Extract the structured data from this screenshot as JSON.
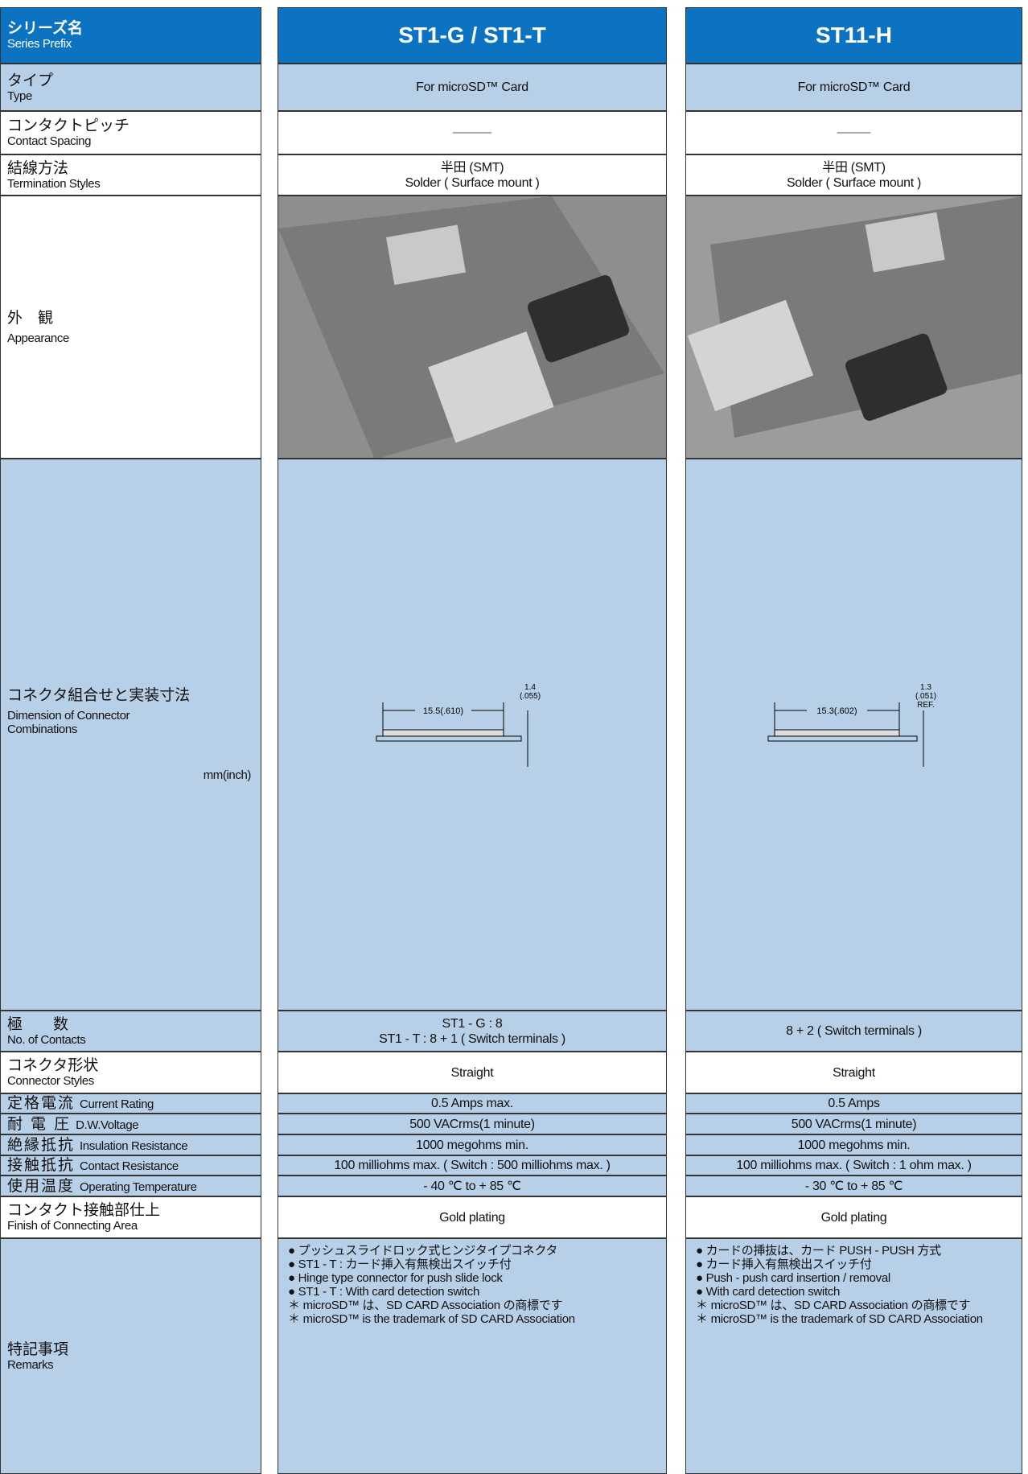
{
  "header": {
    "label_ja": "シリーズ名",
    "label_en": "Series Prefix",
    "series": [
      "ST1-G / ST1-T",
      "ST11-H"
    ]
  },
  "rows": [
    {
      "label_ja": "タイプ",
      "label_en": "Type",
      "cells": [
        [
          "For microSD™ Card"
        ],
        [
          "For microSD™ Card"
        ]
      ]
    },
    {
      "label_ja": "コンタクトピッチ",
      "label_en": "Contact Spacing"
    },
    {
      "label_ja": "結線方法",
      "label_en": "Termination Styles",
      "cells": [
        [
          "半田 (SMT)",
          "Solder ( Surface mount )"
        ],
        [
          "半田 (SMT)",
          "Solder ( Surface mount )"
        ]
      ]
    },
    {
      "label_ja": "外　観",
      "label_en": "Appearance"
    },
    {
      "label_ja": "コネクタ組合せと実装寸法",
      "label_en": "Dimension of Connector Combinations",
      "unit": "mm(inch)",
      "drawings": [
        {
          "length": "15.5(.610)",
          "height": [
            "1.4",
            "(.055)"
          ]
        },
        {
          "length": "15.3(.602)",
          "height": [
            "1.3",
            "(.051)",
            "REF."
          ]
        }
      ]
    },
    {
      "label_ja": "極　　数",
      "label_en": "No. of Contacts",
      "cells": [
        [
          "ST1 - G : 8",
          "ST1 - T : 8 + 1 ( Switch terminals )"
        ],
        [
          "8 + 2 ( Switch terminals )"
        ]
      ]
    },
    {
      "label_ja": "コネクタ形状",
      "label_en": "Connector Styles",
      "cells": [
        [
          "Straight"
        ],
        [
          "Straight"
        ]
      ]
    },
    {
      "label_ja": "定格電流",
      "label_en": "Current Rating",
      "cells": [
        [
          "0.5 Amps max."
        ],
        [
          "0.5 Amps"
        ]
      ]
    },
    {
      "label_ja": "耐 電 圧",
      "label_en": "D.W.Voltage",
      "cells": [
        [
          "500 VACrms(1 minute)"
        ],
        [
          "500 VACrms(1 minute)"
        ]
      ]
    },
    {
      "label_ja": "絶縁抵抗",
      "label_en": "Insulation Resistance",
      "cells": [
        [
          "1000 megohms min."
        ],
        [
          "1000 megohms min."
        ]
      ]
    },
    {
      "label_ja": "接触抵抗",
      "label_en": "Contact Resistance",
      "cells": [
        [
          "100 milliohms max. ( Switch : 500 milliohms max. )"
        ],
        [
          "100 milliohms max. ( Switch : 1 ohm max. )"
        ]
      ]
    },
    {
      "label_ja": "使用温度",
      "label_en": "Operating Temperature",
      "cells": [
        [
          "- 40 ℃  to  + 85 ℃"
        ],
        [
          "- 30 ℃  to  + 85 ℃"
        ]
      ]
    },
    {
      "label_ja": "コンタクト接触部仕上",
      "label_en": "Finish of Connecting Area",
      "cells": [
        [
          "Gold plating"
        ],
        [
          "Gold plating"
        ]
      ]
    },
    {
      "label_ja": "特記事項",
      "label_en": "Remarks",
      "cells": [
        [
          "● プッシュスライドロック式ヒンジタイプコネクタ",
          "● ST1 - T : カード挿入有無検出スイッチ付",
          "● Hinge type connector for push slide lock",
          "● ST1 - T : With card detection switch",
          "＊ microSD™ は、SD CARD Association の商標です",
          "＊ microSD™ is the trademark of SD CARD Association"
        ],
        [
          "● カードの挿抜は、カード PUSH - PUSH 方式",
          "● カード挿入有無検出スイッチ付",
          "● Push - push card insertion / removal",
          "● With card detection switch",
          "＊ microSD™ は、SD CARD Association の商標です",
          "＊ microSD™ is the trademark of SD CARD Association"
        ]
      ]
    }
  ]
}
